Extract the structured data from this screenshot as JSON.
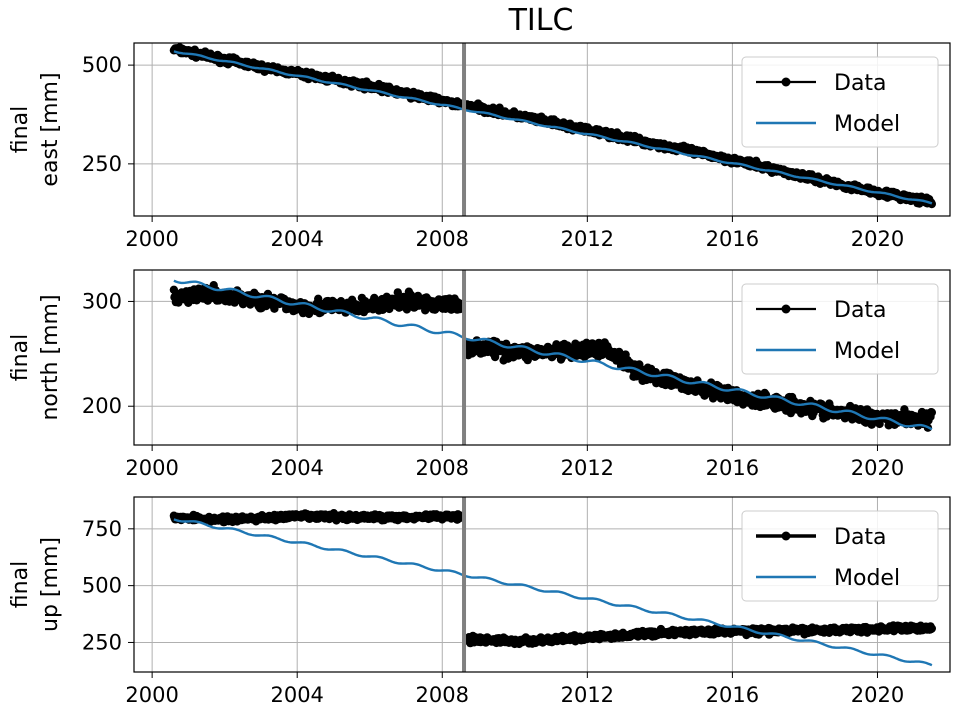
{
  "title": "TILC",
  "colors": {
    "data": "#000000",
    "model": "#1f77b4",
    "event_line": "#808080",
    "grid": "#b0b0b0"
  },
  "chart_data": [
    {
      "type": "line",
      "ylabel_line1": "final",
      "ylabel_line2": "east [mm]",
      "xlim": [
        1999.5,
        2022.0
      ],
      "ylim": [
        118,
        556
      ],
      "xticks": [
        2000,
        2004,
        2008,
        2012,
        2016,
        2020
      ],
      "xticklabels": [
        "2000",
        "2004",
        "2008",
        "2012",
        "2016",
        "2020"
      ],
      "yticks": [
        250,
        500
      ],
      "yticklabels": [
        "250",
        "500"
      ],
      "grid": true,
      "legend_position": "upper right",
      "event_line_x": 2008.6,
      "series": [
        {
          "name": "Data",
          "kind": "points",
          "x": [
            2000.6,
            2003,
            2006,
            2008.5,
            2008.65,
            2012,
            2016,
            2019,
            2021.5
          ],
          "y": [
            540,
            495,
            447,
            399,
            399,
            335,
            260,
            197,
            152
          ],
          "noise": 6,
          "color": "#000000"
        },
        {
          "name": "Model",
          "kind": "line",
          "x": [
            2000.6,
            2021.5
          ],
          "y": [
            536,
            150
          ],
          "seasonal_amp": 2,
          "color": "#1f77b4"
        }
      ]
    },
    {
      "type": "line",
      "ylabel_line1": "final",
      "ylabel_line2": "north [mm]",
      "xlim": [
        1999.5,
        2022.0
      ],
      "ylim": [
        163,
        330
      ],
      "xticks": [
        2000,
        2004,
        2008,
        2012,
        2016,
        2020
      ],
      "xticklabels": [
        "2000",
        "2004",
        "2008",
        "2012",
        "2016",
        "2020"
      ],
      "yticks": [
        200,
        300
      ],
      "yticklabels": [
        "200",
        "300"
      ],
      "grid": true,
      "legend_position": "upper right",
      "event_line_x": 2008.6,
      "series": [
        {
          "name": "Data",
          "kind": "points",
          "x": [
            2000.6,
            2001.3,
            2002.5,
            2004,
            2005.5,
            2007,
            2008.5,
            2008.65,
            2010,
            2011.5,
            2012.5,
            2013.5,
            2015,
            2016.5,
            2017.5,
            2019,
            2021.5
          ],
          "y": [
            302,
            308,
            303,
            296,
            294,
            300,
            296,
            258,
            252,
            251,
            255,
            232,
            218,
            206,
            203,
            193,
            187
          ],
          "noise": 5,
          "color": "#000000"
        },
        {
          "name": "Model",
          "kind": "line",
          "x": [
            2000.6,
            2021.5
          ],
          "y": [
            321,
            178
          ],
          "seasonal_amp": 2,
          "color": "#1f77b4"
        }
      ]
    },
    {
      "type": "line",
      "ylabel_line1": "final",
      "ylabel_line2": "up [mm]",
      "xlim": [
        1999.5,
        2022.0
      ],
      "ylim": [
        120,
        890
      ],
      "xticks": [
        2000,
        2004,
        2008,
        2012,
        2016,
        2020
      ],
      "xticklabels": [
        "2000",
        "2004",
        "2008",
        "2012",
        "2016",
        "2020"
      ],
      "yticks": [
        250,
        500,
        750
      ],
      "yticklabels": [
        "250",
        "500",
        "750"
      ],
      "grid": true,
      "legend_position": "upper right",
      "event_line_x": 2008.6,
      "series": [
        {
          "name": "Data",
          "kind": "points",
          "x": [
            2000.6,
            2002,
            2004,
            2006,
            2008.5,
            2008.65,
            2010,
            2012,
            2014,
            2016,
            2018,
            2021.5
          ],
          "y": [
            800,
            790,
            805,
            800,
            805,
            265,
            255,
            270,
            292,
            300,
            302,
            315
          ],
          "noise": 9,
          "color": "#000000"
        },
        {
          "name": "Model",
          "kind": "line",
          "x": [
            2000.6,
            2021.5
          ],
          "y": [
            795,
            150
          ],
          "seasonal_amp": 6,
          "color": "#1f77b4"
        }
      ]
    }
  ]
}
